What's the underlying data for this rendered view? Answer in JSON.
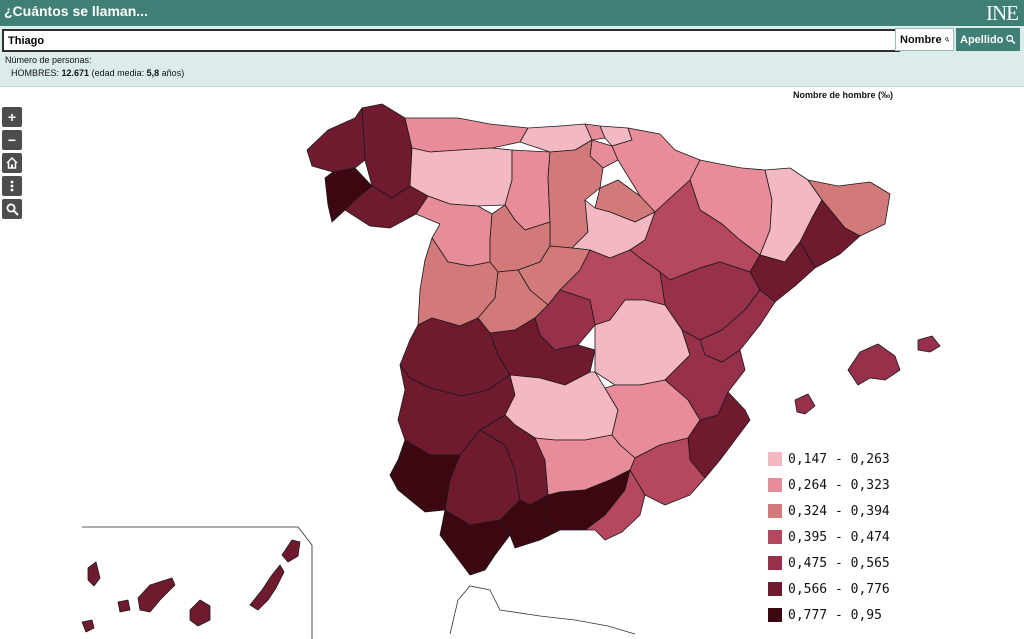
{
  "header": {
    "title": "¿Cuántos se llaman...",
    "logo": "INE"
  },
  "search": {
    "value": "Thiago",
    "nombre_label": "Nombre",
    "apellido_label": "Apellido",
    "button_icon": "search-icon"
  },
  "stats": {
    "label": "Número de personas:",
    "group_label": "HOMBRES:",
    "count": "12.671",
    "age_prefix": "(edad media:",
    "age_value": "5,8",
    "age_suffix": "años)"
  },
  "map": {
    "legend_title": "Nombre de hombre (‰)",
    "controls": [
      "zoom-in-icon",
      "zoom-out-icon",
      "home-icon",
      "more-icon",
      "search-icon"
    ],
    "legend": [
      {
        "label": "0,147 - 0,263",
        "color": "#f4b8c3"
      },
      {
        "label": "0,264 - 0,323",
        "color": "#e88c99"
      },
      {
        "label": "0,324 - 0,394",
        "color": "#d27a7a"
      },
      {
        "label": "0,395 - 0,474",
        "color": "#b5485e"
      },
      {
        "label": "0,475 - 0,565",
        "color": "#96304b"
      },
      {
        "label": "0,566 - 0,776",
        "color": "#701a30"
      },
      {
        "label": "0,777 - 0,95",
        "color": "#3d0711"
      }
    ]
  }
}
